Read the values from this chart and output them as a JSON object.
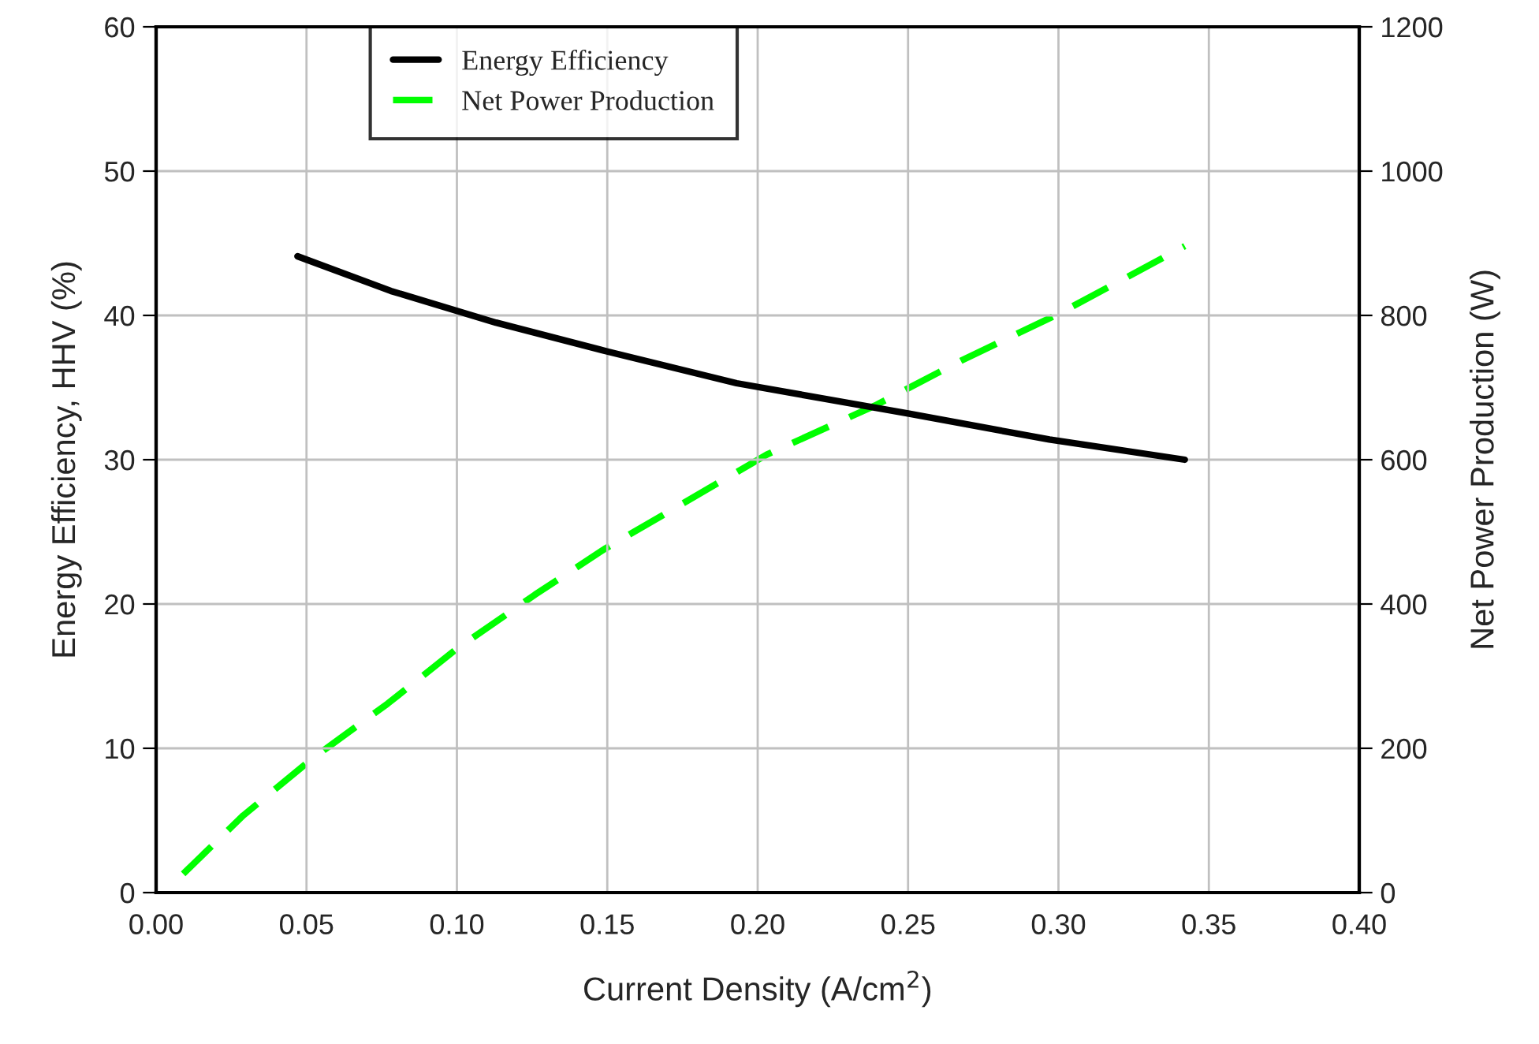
{
  "chart_data": {
    "type": "line",
    "xlabel": "Current Density (A/cm$^{2}$)",
    "ylabel": "Energy Efficiency, HHV (%)",
    "y2label": "Net Power Production (W)",
    "xlim": [
      0,
      0.4
    ],
    "xticks": [
      {
        "value": 0,
        "label": "0.00"
      },
      {
        "value": 0.05,
        "label": "0.05"
      },
      {
        "value": 0.1,
        "label": "0.10"
      },
      {
        "value": 0.15,
        "label": "0.15"
      },
      {
        "value": 0.2,
        "label": "0.20"
      },
      {
        "value": 0.25,
        "label": "0.25"
      },
      {
        "value": 0.3,
        "label": "0.30"
      },
      {
        "value": 0.35,
        "label": "0.35"
      },
      {
        "value": 0.4,
        "label": "0.40"
      }
    ],
    "ylim": [
      0,
      60
    ],
    "yticks": [
      0,
      10,
      20,
      30,
      40,
      50,
      60
    ],
    "y2lim": [
      0,
      1200
    ],
    "y2ticks": [
      0,
      200,
      400,
      600,
      800,
      1000,
      1200
    ],
    "grid": true,
    "legend": "top",
    "marker": "none",
    "series": [
      {
        "name": "Energy Efficiency",
        "color": "#000000",
        "line_style": "solid",
        "x": [
          0.047,
          0.078,
          0.113,
          0.15,
          0.193,
          0.25,
          0.297,
          0.342
        ],
        "values": [
          44.1,
          41.7,
          39.5,
          37.5,
          35.3,
          33.2,
          31.4,
          30.0
        ]
      },
      {
        "name": "Net Power Production",
        "color": "#00ff00",
        "line_style": "dashed",
        "axis": "y2",
        "x": [
          0.009,
          0.029,
          0.052,
          0.077,
          0.1,
          0.126,
          0.149,
          0.203,
          0.239,
          0.268,
          0.3,
          0.342
        ],
        "values": [
          26,
          107,
          186,
          262,
          338,
          413,
          476,
          607,
          675,
          738,
          802,
          896
        ]
      }
    ]
  }
}
